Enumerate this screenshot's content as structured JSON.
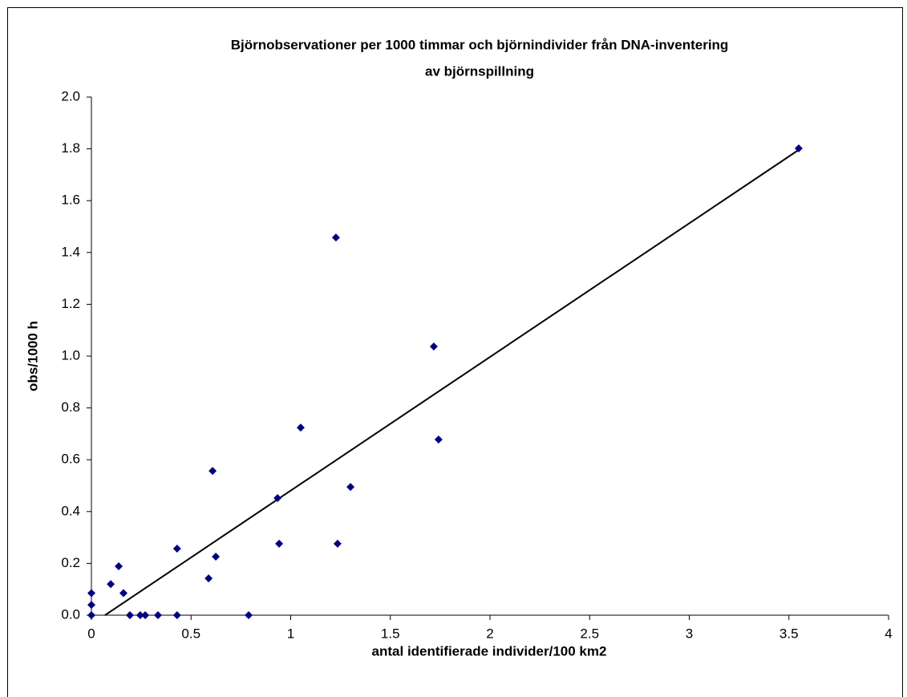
{
  "chart_data": {
    "type": "scatter",
    "title": [
      "Björnobservationer per 1000 timmar och björnindivider från DNA-inventering",
      "av björnspillning"
    ],
    "x_label": "antal identifierade individer/100 km2",
    "y_label": "obs/1000 h",
    "series": [
      {
        "color": "#000080",
        "x": [
          0,
          0,
          0,
          0.097,
          0.137,
          0.161,
          0.193,
          0.245,
          0.27,
          0.334,
          0.43,
          0.43,
          0.588,
          0.608,
          0.624,
          0.789,
          0.934,
          0.942,
          1.05,
          1.227,
          1.235,
          1.3,
          1.718,
          1.742,
          3.549
        ],
        "values": [
          0.085,
          0.04,
          0,
          0.12,
          0.189,
          0.085,
          0,
          0,
          0,
          0,
          0.257,
          0,
          0.142,
          0.557,
          0.226,
          0,
          0.452,
          0.276,
          0.724,
          1.458,
          0.276,
          0.495,
          1.037,
          0.678,
          1.802
        ]
      }
    ],
    "trendline": {
      "color": "#000000",
      "x": [
        0.068,
        3.549
      ],
      "values": [
        0,
        1.796
      ]
    },
    "xlim": [
      0,
      4
    ],
    "xticks": [
      0,
      0.5,
      1,
      1.5,
      2,
      2.5,
      3,
      3.5,
      4
    ],
    "ylim": [
      0,
      2
    ],
    "yticks": [
      {
        "value": 0,
        "label": "0.0"
      },
      {
        "value": 0.2,
        "label": "0.2"
      },
      {
        "value": 0.4,
        "label": "0.4"
      },
      {
        "value": 0.6,
        "label": "0.6"
      },
      {
        "value": 0.8,
        "label": "0.8"
      },
      {
        "value": 1,
        "label": "1.0"
      },
      {
        "value": 1.2,
        "label": "1.2"
      },
      {
        "value": 1.4,
        "label": "1.4"
      },
      {
        "value": 1.6,
        "label": "1.6"
      },
      {
        "value": 1.8,
        "label": "1.8"
      },
      {
        "value": 2,
        "label": "2.0"
      }
    ]
  }
}
